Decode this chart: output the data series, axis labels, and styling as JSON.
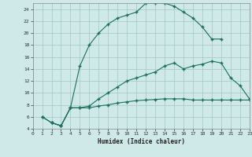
{
  "title": "",
  "xlabel": "Humidex (Indice chaleur)",
  "bg_color": "#cfe8e8",
  "grid_color": "#aacccc",
  "line_color": "#1a7060",
  "xlim": [
    0,
    23
  ],
  "ylim": [
    4,
    25
  ],
  "xticks": [
    0,
    1,
    2,
    3,
    4,
    5,
    6,
    7,
    8,
    9,
    10,
    11,
    12,
    13,
    14,
    15,
    16,
    17,
    18,
    19,
    20,
    21,
    22,
    23
  ],
  "yticks": [
    4,
    6,
    8,
    10,
    12,
    14,
    16,
    18,
    20,
    22,
    24
  ],
  "line1_x": [
    1,
    2,
    3,
    4,
    5,
    6,
    7,
    8,
    9,
    10,
    11,
    12,
    13,
    14,
    15,
    16,
    17,
    18,
    19,
    20
  ],
  "line1_y": [
    6,
    5,
    4.5,
    7.5,
    14.5,
    18,
    20,
    21.5,
    22.5,
    23,
    23.5,
    25,
    25,
    25,
    24.5,
    23.5,
    22.5,
    21,
    19,
    19
  ],
  "line2_x": [
    1,
    2,
    3,
    4,
    5,
    6,
    7,
    8,
    9,
    10,
    11,
    12,
    13,
    14,
    15,
    16,
    17,
    18,
    19,
    20,
    21,
    22,
    23
  ],
  "line2_y": [
    6,
    5,
    4.5,
    7.5,
    7.5,
    7.5,
    7.8,
    8.0,
    8.3,
    8.5,
    8.7,
    8.8,
    8.9,
    9.0,
    9.0,
    9.0,
    8.8,
    8.8,
    8.8,
    8.8,
    8.8,
    8.8,
    8.8
  ],
  "line3_x": [
    2,
    3,
    4,
    5,
    6,
    7,
    8,
    9,
    10,
    11,
    12,
    13,
    14,
    15,
    16,
    17,
    18,
    19,
    20,
    21,
    22,
    23
  ],
  "line3_y": [
    5,
    4.5,
    7.5,
    7.5,
    7.8,
    9,
    10,
    11,
    12,
    12.5,
    13,
    13.5,
    14.5,
    15,
    14,
    14.5,
    14.8,
    15.3,
    15,
    12.5,
    11.2,
    9
  ]
}
